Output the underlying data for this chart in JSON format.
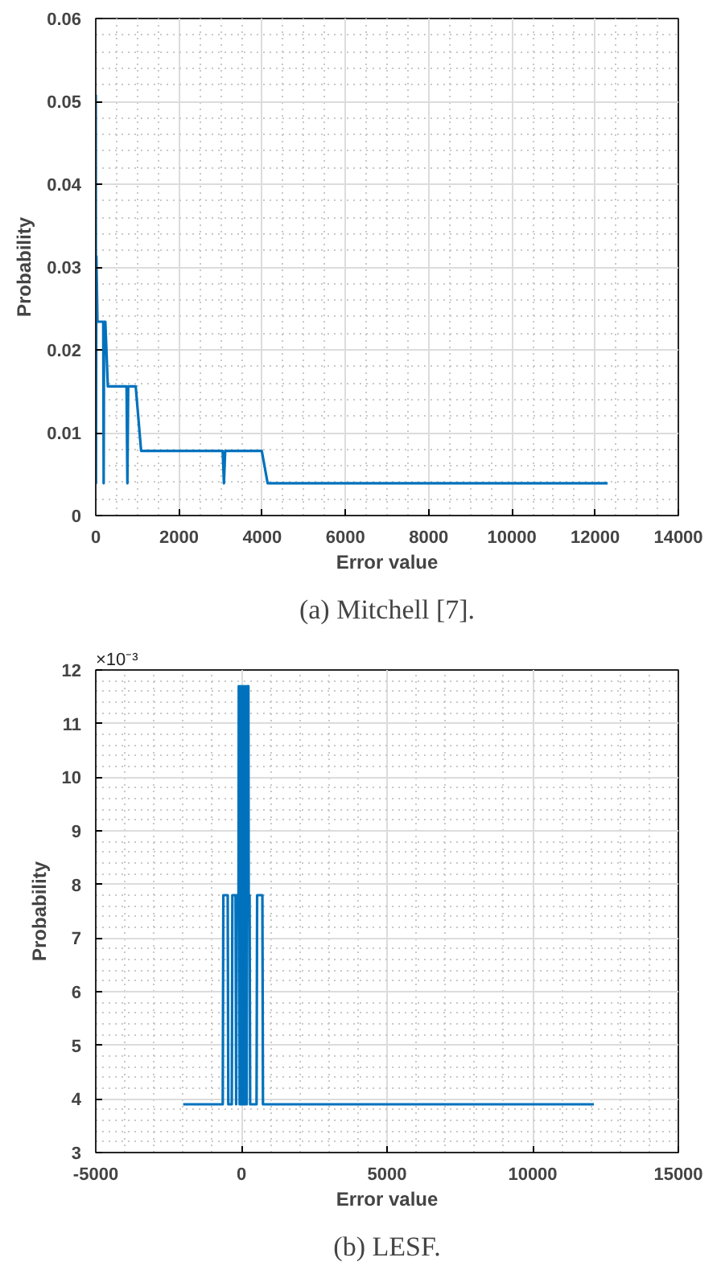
{
  "chart_data": [
    {
      "type": "line",
      "title": "(a) Mitchell [7].",
      "xlabel": "Error value",
      "ylabel": "Probability",
      "grid": true,
      "xlim": [
        0,
        14000
      ],
      "xticks": [
        0,
        2000,
        4000,
        6000,
        8000,
        10000,
        12000,
        14000
      ],
      "ylim": [
        0,
        0.06
      ],
      "yticks": [
        0,
        0.01,
        0.02,
        0.03,
        0.04,
        0.05,
        0.06
      ],
      "series": [
        {
          "color": "#0072bd",
          "x": [
            0,
            5,
            15,
            40,
            180,
            190,
            200,
            230,
            290,
            740,
            760,
            780,
            960,
            1090,
            3050,
            3080,
            3110,
            3990,
            4130,
            12300
          ],
          "values": [
            0.0508,
            0.0039,
            0.0313,
            0.0234,
            0.0234,
            0.0039,
            0.0234,
            0.0234,
            0.0156,
            0.0156,
            0.0039,
            0.0156,
            0.0156,
            0.0078,
            0.0078,
            0.0039,
            0.0078,
            0.0078,
            0.0039,
            0.0039
          ]
        }
      ]
    },
    {
      "type": "line",
      "title": "(b) LESF.",
      "xlabel": "Error value",
      "ylabel": "Probability",
      "grid": true,
      "annotations": [
        "×10⁻³"
      ],
      "xlim": [
        -5000,
        15000
      ],
      "xticks": [
        -5000,
        0,
        5000,
        10000,
        15000
      ],
      "ylim": [
        3,
        12
      ],
      "yticks": [
        3,
        4,
        5,
        6,
        7,
        8,
        9,
        10,
        11,
        12
      ],
      "series": [
        {
          "color": "#0072bd",
          "x": [
            -2000,
            -640,
            -620,
            -470,
            -450,
            -330,
            -310,
            -200,
            -180,
            -160,
            -100,
            -90,
            -60,
            -30,
            0,
            30,
            60,
            90,
            120,
            150,
            180,
            210,
            240,
            250,
            280,
            300,
            520,
            540,
            720,
            740,
            12100
          ],
          "values": [
            3.9,
            3.9,
            7.8,
            7.8,
            3.9,
            3.9,
            7.8,
            7.8,
            3.9,
            7.8,
            7.8,
            11.7,
            3.9,
            11.7,
            3.9,
            11.7,
            3.9,
            11.7,
            3.9,
            11.7,
            3.9,
            11.7,
            11.7,
            7.8,
            7.8,
            3.9,
            3.9,
            7.8,
            7.8,
            3.9,
            3.9
          ]
        }
      ]
    }
  ]
}
